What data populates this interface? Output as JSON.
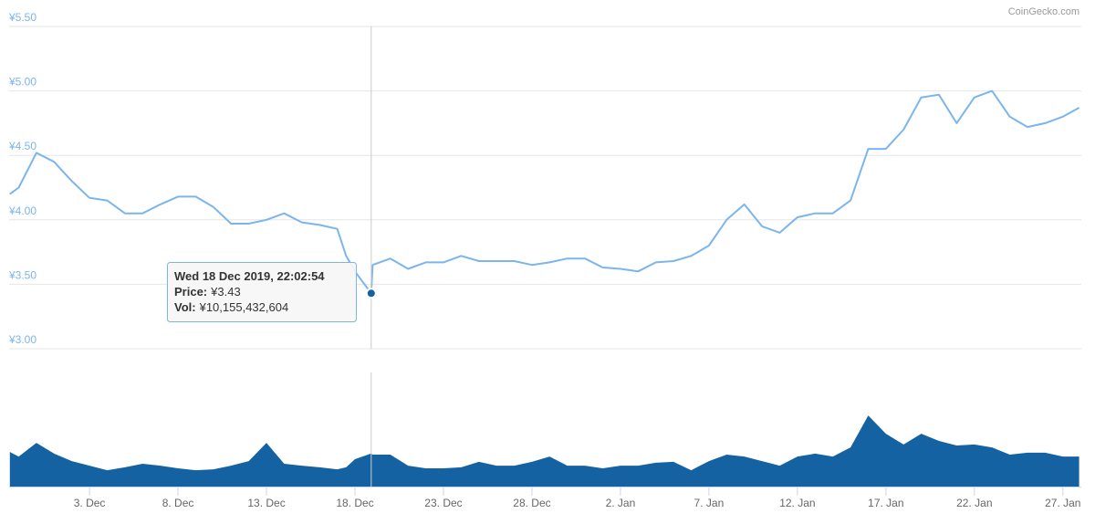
{
  "chart_data": {
    "type": "line",
    "credits": "CoinGecko.com",
    "x": [
      "2019-11-28T12:00",
      "2019-11-29T00:00",
      "2019-11-30T00:00",
      "2019-12-01T00:00",
      "2019-12-02T00:00",
      "2019-12-03T00:00",
      "2019-12-04T00:00",
      "2019-12-05T00:00",
      "2019-12-06T00:00",
      "2019-12-07T00:00",
      "2019-12-08T00:00",
      "2019-12-09T00:00",
      "2019-12-10T00:00",
      "2019-12-11T00:00",
      "2019-12-12T00:00",
      "2019-12-13T00:00",
      "2019-12-14T00:00",
      "2019-12-15T00:00",
      "2019-12-16T00:00",
      "2019-12-17T00:00",
      "2019-12-17T12:00",
      "2019-12-18T00:00",
      "2019-12-18T22:02",
      "2019-12-19T00:00",
      "2019-12-20T00:00",
      "2019-12-21T00:00",
      "2019-12-22T00:00",
      "2019-12-23T00:00",
      "2019-12-24T00:00",
      "2019-12-25T00:00",
      "2019-12-26T00:00",
      "2019-12-27T00:00",
      "2019-12-28T00:00",
      "2019-12-29T00:00",
      "2019-12-30T00:00",
      "2019-12-31T00:00",
      "2020-01-01T00:00",
      "2020-01-02T00:00",
      "2020-01-03T00:00",
      "2020-01-04T00:00",
      "2020-01-05T00:00",
      "2020-01-06T00:00",
      "2020-01-07T00:00",
      "2020-01-08T00:00",
      "2020-01-09T00:00",
      "2020-01-10T00:00",
      "2020-01-11T00:00",
      "2020-01-12T00:00",
      "2020-01-13T00:00",
      "2020-01-14T00:00",
      "2020-01-15T00:00",
      "2020-01-16T00:00",
      "2020-01-17T00:00",
      "2020-01-18T00:00",
      "2020-01-19T00:00",
      "2020-01-20T00:00",
      "2020-01-21T00:00",
      "2020-01-22T00:00",
      "2020-01-23T00:00",
      "2020-01-24T00:00",
      "2020-01-25T00:00",
      "2020-01-26T00:00",
      "2020-01-27T00:00",
      "2020-01-27T22:00"
    ],
    "series": [
      {
        "name": "Price",
        "color": "#7cb5ec",
        "values": [
          4.2,
          4.25,
          4.52,
          4.45,
          4.3,
          4.17,
          4.15,
          4.05,
          4.05,
          4.12,
          4.18,
          4.18,
          4.1,
          3.97,
          3.97,
          4.0,
          4.05,
          3.98,
          3.96,
          3.93,
          3.72,
          3.6,
          3.43,
          3.65,
          3.7,
          3.62,
          3.67,
          3.67,
          3.72,
          3.68,
          3.68,
          3.68,
          3.65,
          3.67,
          3.7,
          3.7,
          3.63,
          3.62,
          3.6,
          3.67,
          3.68,
          3.72,
          3.8,
          4.0,
          4.12,
          3.95,
          3.9,
          4.02,
          4.05,
          4.05,
          4.15,
          4.55,
          4.55,
          4.7,
          4.95,
          4.97,
          4.75,
          4.95,
          5.0,
          4.8,
          4.72,
          4.75,
          4.8,
          4.87
        ]
      },
      {
        "name": "Vol",
        "color": "#1562a2",
        "values": [
          10600000000,
          9200000000,
          13400000000,
          10100000000,
          7800000000,
          6400000000,
          5000000000,
          5900000000,
          7000000000,
          6400000000,
          5600000000,
          5000000000,
          5300000000,
          6400000000,
          7800000000,
          13400000000,
          7000000000,
          6400000000,
          5900000000,
          5300000000,
          5900000000,
          8400000000,
          10155432604,
          9800000000,
          9800000000,
          6400000000,
          5600000000,
          5600000000,
          5900000000,
          7600000000,
          6400000000,
          6400000000,
          7600000000,
          9200000000,
          6400000000,
          6400000000,
          5600000000,
          6400000000,
          6400000000,
          7300000000,
          7600000000,
          5000000000,
          7800000000,
          9800000000,
          9200000000,
          7800000000,
          6400000000,
          9200000000,
          10100000000,
          9200000000,
          12000000000,
          21800000000,
          16200000000,
          12900000000,
          16200000000,
          14000000000,
          12600000000,
          12900000000,
          12000000000,
          9800000000,
          10400000000,
          10400000000,
          9200000000,
          9200000000
        ]
      }
    ],
    "xlim": [
      "2019-11-28T11:00",
      "2020-01-28T01:00"
    ],
    "xticks": [
      {
        "value": "2019-12-03T00:00",
        "label": "3. Dec"
      },
      {
        "value": "2019-12-08T00:00",
        "label": "8. Dec"
      },
      {
        "value": "2019-12-13T00:00",
        "label": "13. Dec"
      },
      {
        "value": "2019-12-18T00:00",
        "label": "18. Dec"
      },
      {
        "value": "2019-12-23T00:00",
        "label": "23. Dec"
      },
      {
        "value": "2019-12-28T00:00",
        "label": "28. Dec"
      },
      {
        "value": "2020-01-02T00:00",
        "label": "2. Jan"
      },
      {
        "value": "2020-01-07T00:00",
        "label": "7. Jan"
      },
      {
        "value": "2020-01-12T00:00",
        "label": "12. Jan"
      },
      {
        "value": "2020-01-17T00:00",
        "label": "17. Jan"
      },
      {
        "value": "2020-01-22T00:00",
        "label": "22. Jan"
      },
      {
        "value": "2020-01-27T00:00",
        "label": "27. Jan"
      }
    ],
    "ylim": [
      3.0,
      5.5
    ],
    "yticks": [
      {
        "value": 3.0,
        "label": "¥3.00"
      },
      {
        "value": 3.5,
        "label": "¥3.50"
      },
      {
        "value": 4.0,
        "label": "¥4.00"
      },
      {
        "value": 4.5,
        "label": "¥4.50"
      },
      {
        "value": 5.0,
        "label": "¥5.00"
      },
      {
        "value": 5.5,
        "label": "¥5.50"
      }
    ],
    "volume_ylim": [
      0,
      35000000000
    ],
    "grid": true,
    "tooltip": {
      "x": "2019-12-18T22:02:54",
      "title": "Wed 18 Dec 2019, 22:02:54",
      "rows": [
        {
          "label": "Price:",
          "value": 3.43,
          "value_label": "¥3.43"
        },
        {
          "label": "Vol:",
          "value": 10155432604,
          "value_label": "¥10,155,432,604"
        }
      ]
    }
  }
}
